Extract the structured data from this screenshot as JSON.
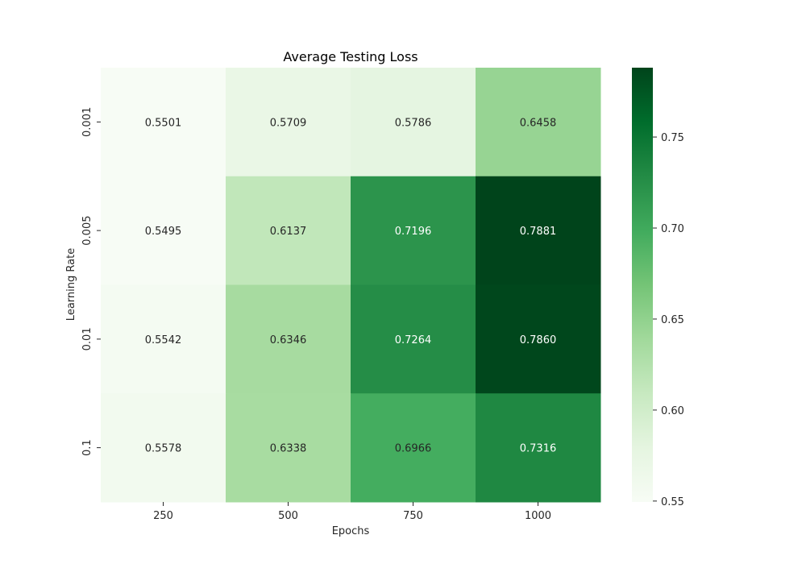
{
  "chart_data": {
    "type": "heatmap",
    "title": "Average Testing Loss",
    "xlabel": "Epochs",
    "ylabel": "Learning Rate",
    "x_categories": [
      "250",
      "500",
      "750",
      "1000"
    ],
    "y_categories": [
      "0.001",
      "0.005",
      "0.01",
      "0.1"
    ],
    "values": [
      [
        0.5501,
        0.5709,
        0.5786,
        0.6458
      ],
      [
        0.5495,
        0.6137,
        0.7196,
        0.7881
      ],
      [
        0.5542,
        0.6346,
        0.7264,
        0.786
      ],
      [
        0.5578,
        0.6338,
        0.6966,
        0.7316
      ]
    ],
    "value_format_decimals": 4,
    "colormap": "Greens",
    "vmin": 0.5495,
    "vmax": 0.7881,
    "colorbar_ticks": [
      0.55,
      0.6,
      0.65,
      0.7,
      0.75
    ],
    "colorbar_tick_labels": [
      "0.55",
      "0.60",
      "0.65",
      "0.70",
      "0.75"
    ]
  }
}
